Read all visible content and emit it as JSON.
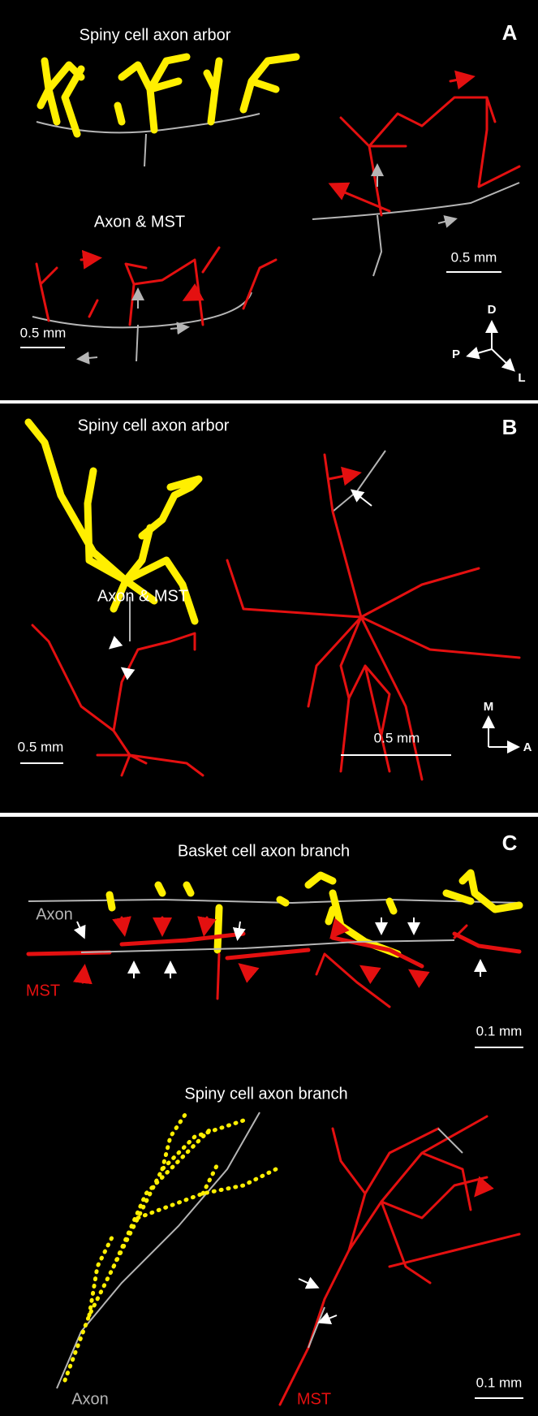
{
  "panels": [
    {
      "label": "A",
      "title": "Spiny cell axon arbor",
      "subtitle": "Axon & MST",
      "scale_bars": [
        "0.5 mm",
        "0.5 mm"
      ],
      "axes": [
        "D",
        "P",
        "L"
      ]
    },
    {
      "label": "B",
      "title": "Spiny cell axon arbor",
      "subtitle": "Axon & MST",
      "scale_bars": [
        "0.5 mm",
        "0.5 mm"
      ],
      "axes": [
        "M",
        "A"
      ]
    },
    {
      "label": "C",
      "title": "Basket cell axon branch",
      "subtitle": "Spiny cell axon branch",
      "labels": [
        "Axon",
        "MST",
        "Axon",
        "MST"
      ],
      "scale_bars": [
        "0.1 mm",
        "0.1 mm"
      ]
    }
  ]
}
